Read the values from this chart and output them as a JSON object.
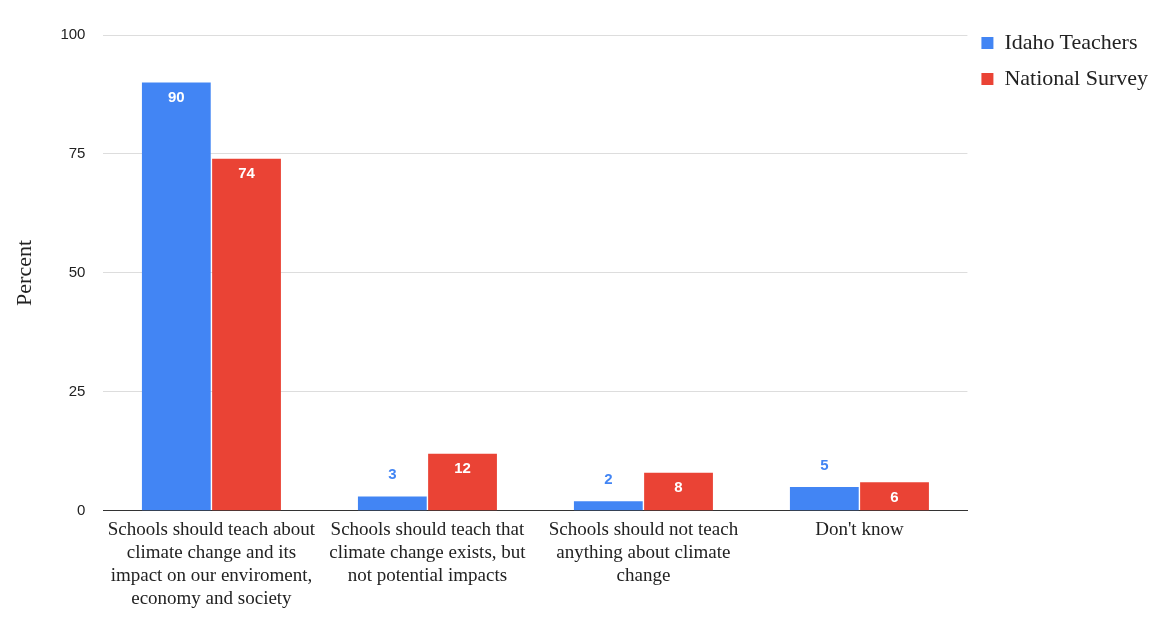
{
  "chart_data": {
    "type": "bar",
    "ylabel": "Percent",
    "categories": [
      "Schools should teach about climate change and its impact on our enviroment, economy and society",
      "Schools should teach that climate change exists, but not potential impacts",
      "Schools should not teach anything about climate change",
      "Don't know"
    ],
    "series": [
      {
        "name": "Idaho Teachers",
        "color": "#4285f4",
        "values": [
          90,
          3,
          2,
          5
        ]
      },
      {
        "name": "National Survey",
        "color": "#ea4335",
        "values": [
          74,
          12,
          8,
          6
        ]
      }
    ],
    "ylim": [
      0,
      100
    ],
    "yticks": [
      0,
      25,
      50,
      75,
      100
    ],
    "grid": "y",
    "legend": "top right",
    "data_labels": true
  }
}
